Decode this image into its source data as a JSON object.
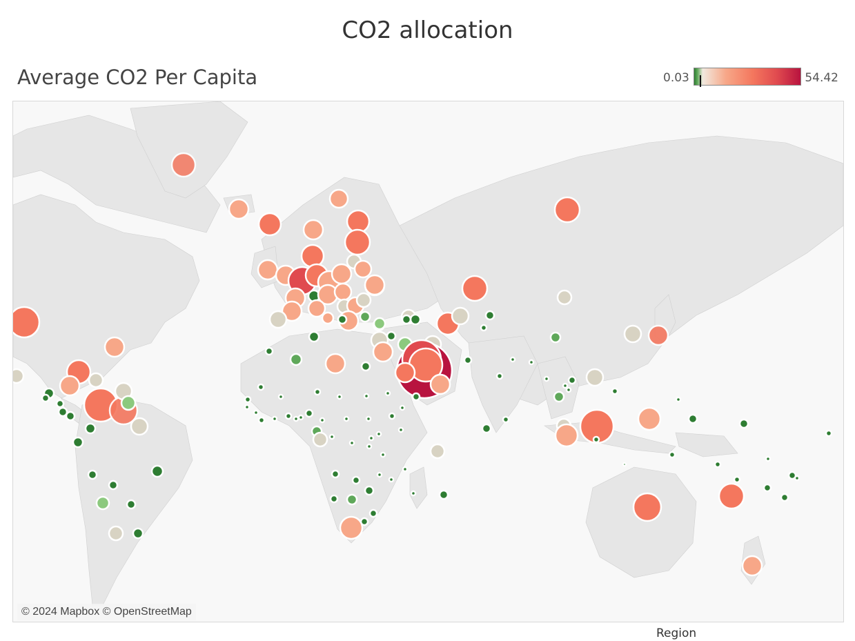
{
  "dashboard": {
    "title": "CO2 allocation"
  },
  "sheet": {
    "title": "Average CO2 Per Capita"
  },
  "legend": {
    "min": "0.03",
    "max": "54.42"
  },
  "map": {
    "attribution": "© 2024 Mapbox © OpenStreetMap",
    "land_color": "#e6e6e6",
    "water_color": "#f8f8f8"
  },
  "footer": {
    "region_label": "Region"
  },
  "colors": {
    "dark_green": "#2e7d32",
    "green": "#5fa85a",
    "light_green": "#8cc97e",
    "neutral": "#d8d3c3",
    "light_salmon": "#f7a788",
    "salmon": "#f4775e",
    "red": "#e04a4f",
    "crimson": "#b8133f"
  }
}
